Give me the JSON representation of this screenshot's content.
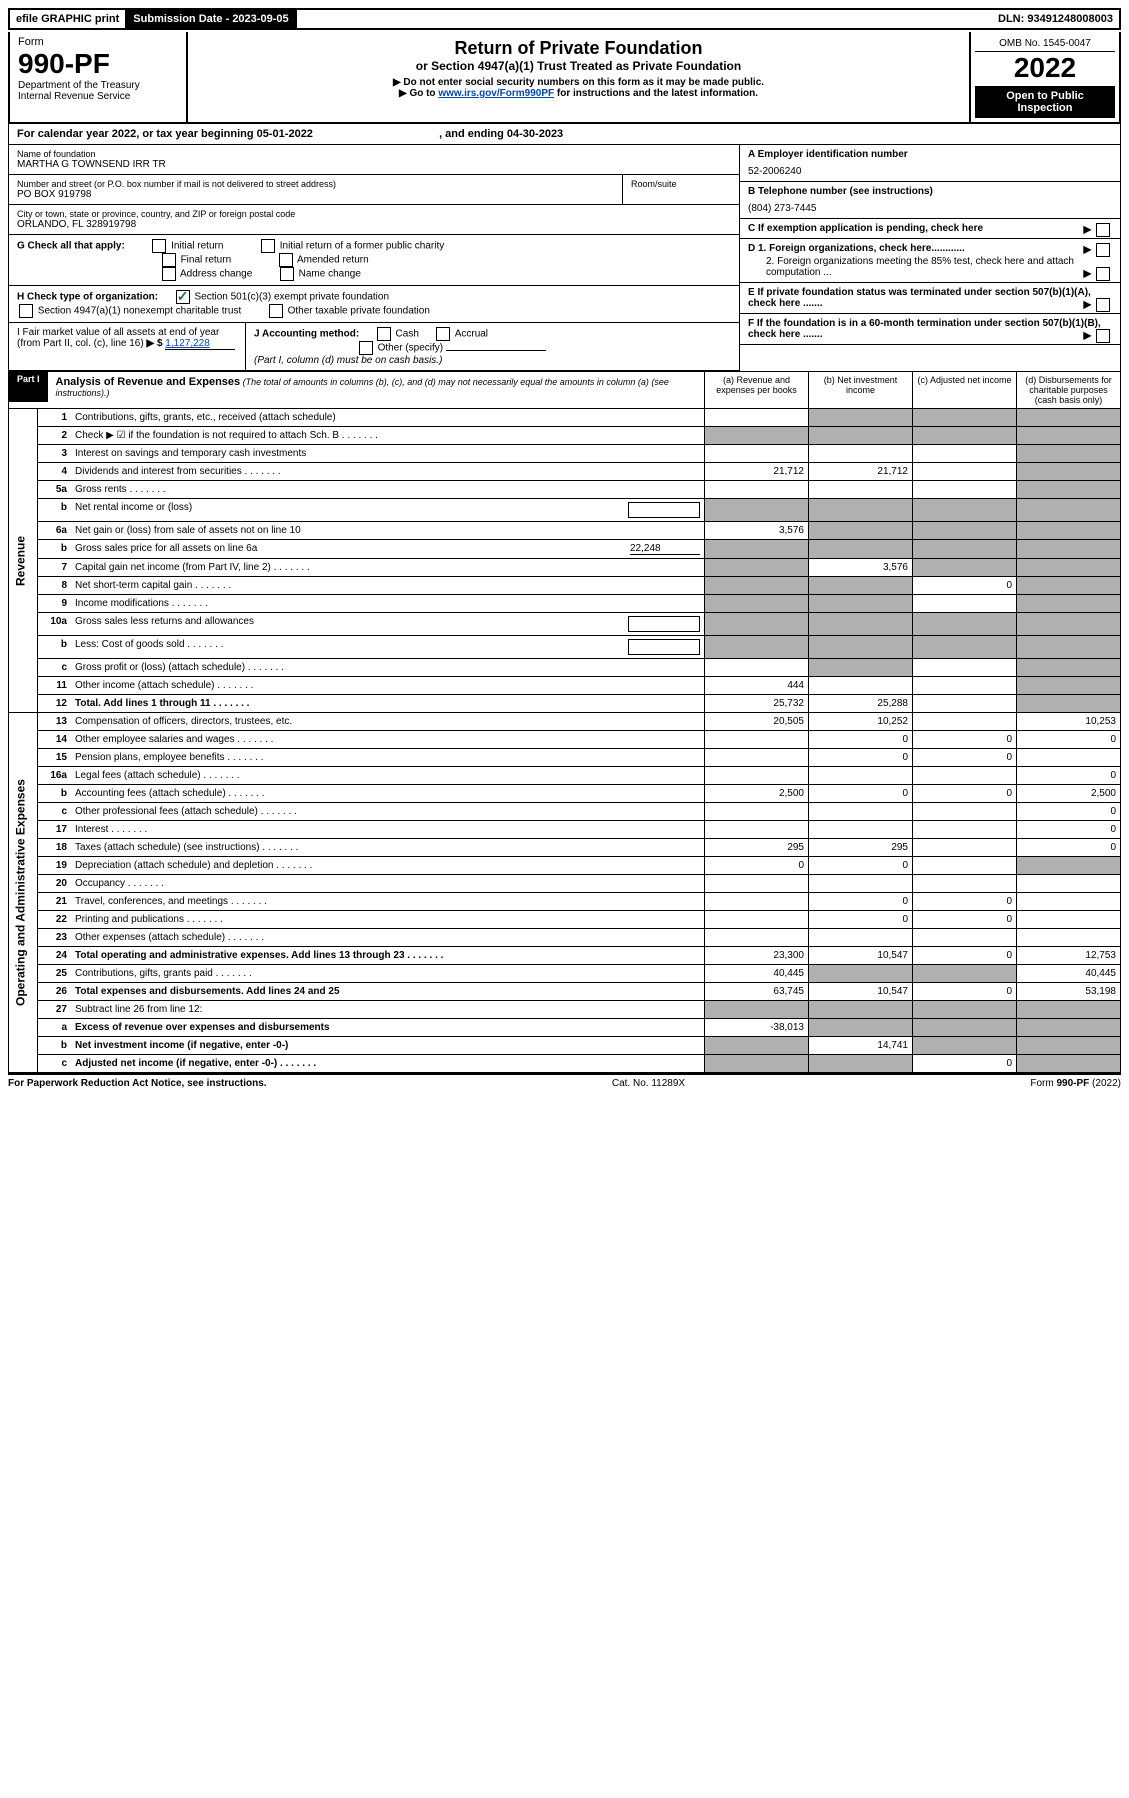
{
  "topbar": {
    "efile": "efile GRAPHIC print",
    "submission_label": "Submission Date - 2023-09-05",
    "dln": "DLN: 93491248008003"
  },
  "header": {
    "form_word": "Form",
    "form_number": "990-PF",
    "dept": "Department of the Treasury",
    "irs": "Internal Revenue Service",
    "title": "Return of Private Foundation",
    "subtitle": "or Section 4947(a)(1) Trust Treated as Private Foundation",
    "note1": "▶ Do not enter social security numbers on this form as it may be made public.",
    "note2_pre": "▶ Go to ",
    "note2_link": "www.irs.gov/Form990PF",
    "note2_post": " for instructions and the latest information.",
    "omb": "OMB No. 1545-0047",
    "year": "2022",
    "open_public": "Open to Public Inspection"
  },
  "calendar": {
    "text_pre": "For calendar year 2022, or tax year beginning ",
    "begin": "05-01-2022",
    "text_mid": " , and ending ",
    "end": "04-30-2023"
  },
  "foundation": {
    "name_label": "Name of foundation",
    "name": "MARTHA G TOWNSEND IRR TR",
    "addr_label": "Number and street (or P.O. box number if mail is not delivered to street address)",
    "addr": "PO BOX 919798",
    "room_label": "Room/suite",
    "city_label": "City or town, state or province, country, and ZIP or foreign postal code",
    "city": "ORLANDO, FL  328919798",
    "ein_label": "A Employer identification number",
    "ein": "52-2006240",
    "phone_label": "B Telephone number (see instructions)",
    "phone": "(804) 273-7445",
    "c_label": "C If exemption application is pending, check here",
    "d1_label": "D 1. Foreign organizations, check here............",
    "d2_label": "2. Foreign organizations meeting the 85% test, check here and attach computation ...",
    "e_label": "E If private foundation status was terminated under section 507(b)(1)(A), check here .......",
    "f_label": "F If the foundation is in a 60-month termination under section 507(b)(1)(B), check here .......",
    "g_label": "G Check all that apply:",
    "g_opts": {
      "initial": "Initial return",
      "initial_former": "Initial return of a former public charity",
      "final": "Final return",
      "amended": "Amended return",
      "addr_change": "Address change",
      "name_change": "Name change"
    },
    "h_label": "H Check type of organization:",
    "h_501c3": "Section 501(c)(3) exempt private foundation",
    "h_4947": "Section 4947(a)(1) nonexempt charitable trust",
    "h_other_tax": "Other taxable private foundation",
    "i_label": "I Fair market value of all assets at end of year (from Part II, col. (c), line 16)",
    "i_value": "1,127,228",
    "j_label": "J Accounting method:",
    "j_cash": "Cash",
    "j_accrual": "Accrual",
    "j_other": "Other (specify)",
    "j_note": "(Part I, column (d) must be on cash basis.)"
  },
  "part1": {
    "label": "Part I",
    "title": "Analysis of Revenue and Expenses",
    "title_note": " (The total of amounts in columns (b), (c), and (d) may not necessarily equal the amounts in column (a) (see instructions).)",
    "col_a": "(a) Revenue and expenses per books",
    "col_b": "(b) Net investment income",
    "col_c": "(c) Adjusted net income",
    "col_d": "(d) Disbursements for charitable purposes (cash basis only)",
    "side_revenue": "Revenue",
    "side_expenses": "Operating and Administrative Expenses"
  },
  "rows": [
    {
      "n": "1",
      "label": "Contributions, gifts, grants, etc., received (attach schedule)",
      "a": "",
      "b": "",
      "c": "",
      "d": "",
      "dgrey": true,
      "cgrey": true,
      "bgrey": true
    },
    {
      "n": "2",
      "label": "Check ▶ ☑ if the foundation is not required to attach Sch. B",
      "a": "",
      "b": "",
      "c": "",
      "d": "",
      "allgrey": true,
      "dots": true
    },
    {
      "n": "3",
      "label": "Interest on savings and temporary cash investments",
      "a": "",
      "b": "",
      "c": "",
      "d": "",
      "dgrey": true
    },
    {
      "n": "4",
      "label": "Dividends and interest from securities",
      "a": "21,712",
      "b": "21,712",
      "c": "",
      "d": "",
      "dgrey": true,
      "dots": true
    },
    {
      "n": "5a",
      "label": "Gross rents",
      "a": "",
      "b": "",
      "c": "",
      "d": "",
      "dgrey": true,
      "dots": true
    },
    {
      "n": "b",
      "label": "Net rental income or (loss)",
      "a": "",
      "b": "",
      "c": "",
      "d": "",
      "allgrey": true,
      "inputbox": true
    },
    {
      "n": "6a",
      "label": "Net gain or (loss) from sale of assets not on line 10",
      "a": "3,576",
      "b": "",
      "c": "",
      "d": "",
      "dgrey": true,
      "bgrey": true,
      "cgrey": true
    },
    {
      "n": "b",
      "label": "Gross sales price for all assets on line 6a",
      "a": "",
      "b": "",
      "c": "",
      "d": "",
      "allgrey": true,
      "inlineval": "22,248"
    },
    {
      "n": "7",
      "label": "Capital gain net income (from Part IV, line 2)",
      "a": "",
      "b": "3,576",
      "c": "",
      "d": "",
      "agrey": true,
      "cgrey": true,
      "dgrey": true,
      "dots": true
    },
    {
      "n": "8",
      "label": "Net short-term capital gain",
      "a": "",
      "b": "",
      "c": "0",
      "d": "",
      "agrey": true,
      "bgrey": true,
      "dgrey": true,
      "dots": true
    },
    {
      "n": "9",
      "label": "Income modifications",
      "a": "",
      "b": "",
      "c": "",
      "d": "",
      "agrey": true,
      "bgrey": true,
      "dgrey": true,
      "dots": true
    },
    {
      "n": "10a",
      "label": "Gross sales less returns and allowances",
      "a": "",
      "b": "",
      "c": "",
      "d": "",
      "allgrey": true,
      "inputbox": true
    },
    {
      "n": "b",
      "label": "Less: Cost of goods sold",
      "a": "",
      "b": "",
      "c": "",
      "d": "",
      "allgrey": true,
      "inputbox": true,
      "dots": true
    },
    {
      "n": "c",
      "label": "Gross profit or (loss) (attach schedule)",
      "a": "",
      "b": "",
      "c": "",
      "d": "",
      "bgrey": true,
      "dgrey": true,
      "dots": true
    },
    {
      "n": "11",
      "label": "Other income (attach schedule)",
      "a": "444",
      "b": "",
      "c": "",
      "d": "",
      "dgrey": true,
      "dots": true
    },
    {
      "n": "12",
      "label": "Total. Add lines 1 through 11",
      "a": "25,732",
      "b": "25,288",
      "c": "",
      "d": "",
      "dgrey": true,
      "bold": true,
      "dots": true
    },
    {
      "n": "13",
      "label": "Compensation of officers, directors, trustees, etc.",
      "a": "20,505",
      "b": "10,252",
      "c": "",
      "d": "10,253"
    },
    {
      "n": "14",
      "label": "Other employee salaries and wages",
      "a": "",
      "b": "0",
      "c": "0",
      "d": "0",
      "dots": true
    },
    {
      "n": "15",
      "label": "Pension plans, employee benefits",
      "a": "",
      "b": "0",
      "c": "0",
      "d": "",
      "dots": true
    },
    {
      "n": "16a",
      "label": "Legal fees (attach schedule)",
      "a": "",
      "b": "",
      "c": "",
      "d": "0",
      "dots": true
    },
    {
      "n": "b",
      "label": "Accounting fees (attach schedule)",
      "a": "2,500",
      "b": "0",
      "c": "0",
      "d": "2,500",
      "dots": true
    },
    {
      "n": "c",
      "label": "Other professional fees (attach schedule)",
      "a": "",
      "b": "",
      "c": "",
      "d": "0",
      "dots": true
    },
    {
      "n": "17",
      "label": "Interest",
      "a": "",
      "b": "",
      "c": "",
      "d": "0",
      "dots": true
    },
    {
      "n": "18",
      "label": "Taxes (attach schedule) (see instructions)",
      "a": "295",
      "b": "295",
      "c": "",
      "d": "0",
      "dots": true
    },
    {
      "n": "19",
      "label": "Depreciation (attach schedule) and depletion",
      "a": "0",
      "b": "0",
      "c": "",
      "d": "",
      "dgrey": true,
      "dots": true
    },
    {
      "n": "20",
      "label": "Occupancy",
      "a": "",
      "b": "",
      "c": "",
      "d": "",
      "dots": true
    },
    {
      "n": "21",
      "label": "Travel, conferences, and meetings",
      "a": "",
      "b": "0",
      "c": "0",
      "d": "",
      "dots": true
    },
    {
      "n": "22",
      "label": "Printing and publications",
      "a": "",
      "b": "0",
      "c": "0",
      "d": "",
      "dots": true
    },
    {
      "n": "23",
      "label": "Other expenses (attach schedule)",
      "a": "",
      "b": "",
      "c": "",
      "d": "",
      "dots": true
    },
    {
      "n": "24",
      "label": "Total operating and administrative expenses. Add lines 13 through 23",
      "a": "23,300",
      "b": "10,547",
      "c": "0",
      "d": "12,753",
      "bold": true,
      "dots": true
    },
    {
      "n": "25",
      "label": "Contributions, gifts, grants paid",
      "a": "40,445",
      "b": "",
      "c": "",
      "d": "40,445",
      "bgrey": true,
      "cgrey": true,
      "dots": true
    },
    {
      "n": "26",
      "label": "Total expenses and disbursements. Add lines 24 and 25",
      "a": "63,745",
      "b": "10,547",
      "c": "0",
      "d": "53,198",
      "bold": true
    },
    {
      "n": "27",
      "label": "Subtract line 26 from line 12:",
      "a": "",
      "b": "",
      "c": "",
      "d": "",
      "allgrey": true
    },
    {
      "n": "a",
      "label": "Excess of revenue over expenses and disbursements",
      "a": "-38,013",
      "b": "",
      "c": "",
      "d": "",
      "bgrey": true,
      "cgrey": true,
      "dgrey": true,
      "bold": true
    },
    {
      "n": "b",
      "label": "Net investment income (if negative, enter -0-)",
      "a": "",
      "b": "14,741",
      "c": "",
      "d": "",
      "agrey": true,
      "cgrey": true,
      "dgrey": true,
      "bold": true
    },
    {
      "n": "c",
      "label": "Adjusted net income (if negative, enter -0-)",
      "a": "",
      "b": "",
      "c": "0",
      "d": "",
      "agrey": true,
      "bgrey": true,
      "dgrey": true,
      "bold": true,
      "dots": true
    }
  ],
  "footer": {
    "left": "For Paperwork Reduction Act Notice, see instructions.",
    "mid": "Cat. No. 11289X",
    "right": "Form 990-PF (2022)"
  }
}
